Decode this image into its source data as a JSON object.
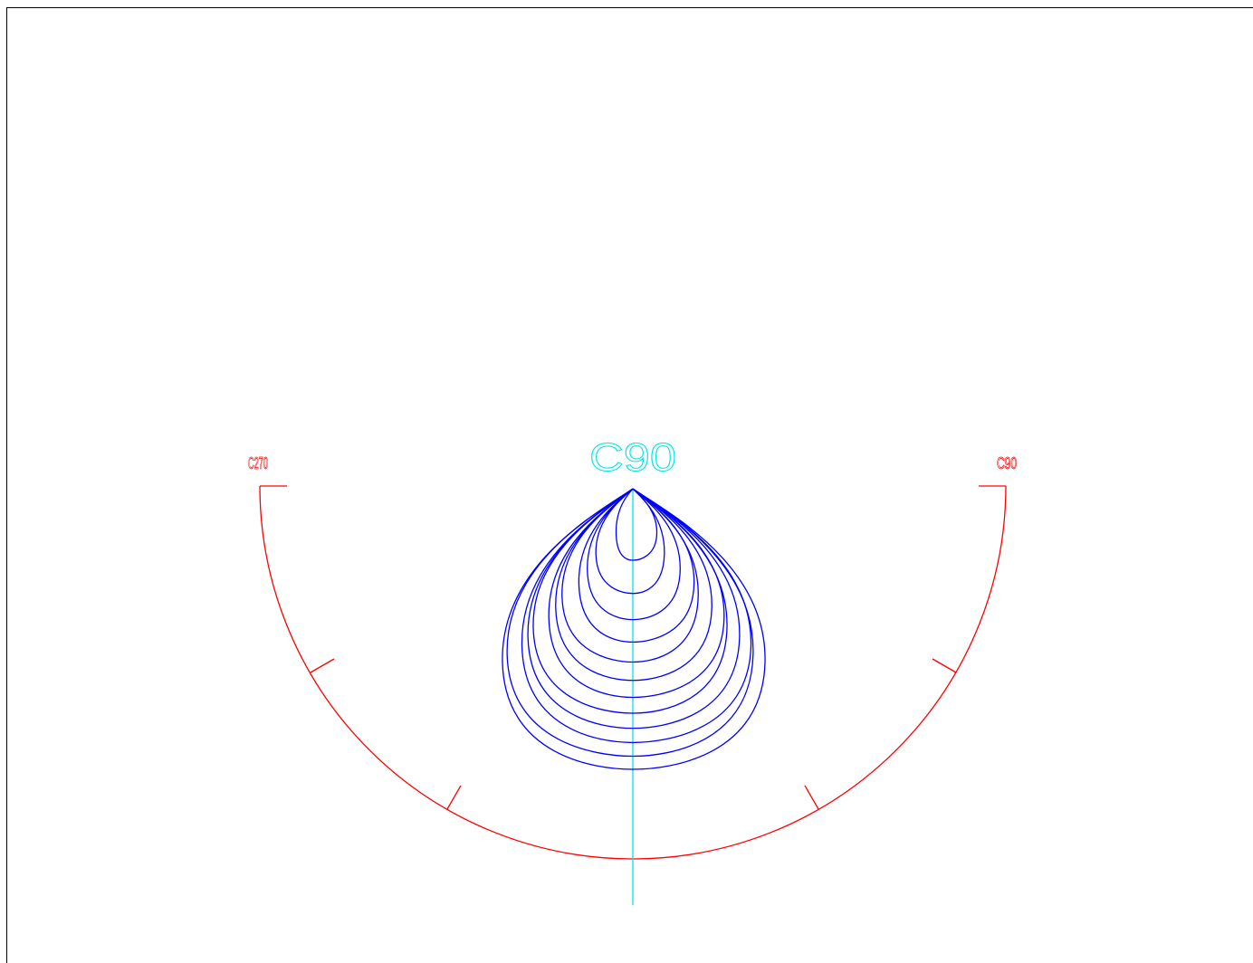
{
  "diagram": {
    "type": "photometric-polar-diagram",
    "axis_label": "C90",
    "left_label": "C270",
    "right_label": "C90",
    "contour_count": 12
  },
  "colors": {
    "background": "#ffffff",
    "frame": "#000000",
    "scale_arc": "#ff0000",
    "axis": "#00e5e5",
    "contours": "#0000ff"
  }
}
